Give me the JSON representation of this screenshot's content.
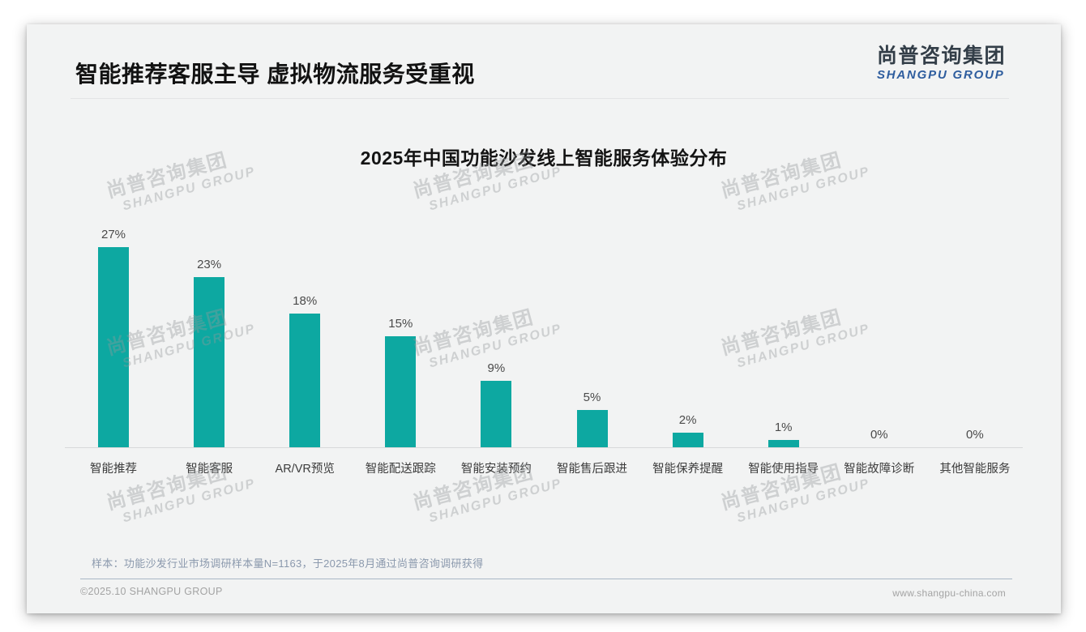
{
  "page": {
    "background_color": "#ffffff",
    "card_background_color": "#f2f3f3"
  },
  "header": {
    "title": "智能推荐客服主导 虚拟物流服务受重视"
  },
  "logo": {
    "cn": "尚普咨询集团",
    "en": "SHANGPU GROUP",
    "cn_color": "#333e48",
    "en_color": "#2e5d9e"
  },
  "watermark": {
    "line1": "尚普咨询集团",
    "line2": "SHANGPU GROUP"
  },
  "chart_data": {
    "type": "bar",
    "title": "2025年中国功能沙发线上智能服务体验分布",
    "categories": [
      "智能推荐",
      "智能客服",
      "AR/VR预览",
      "智能配送跟踪",
      "智能安装预约",
      "智能售后跟进",
      "智能保养提醒",
      "智能使用指导",
      "智能故障诊断",
      "其他智能服务"
    ],
    "values": [
      27,
      23,
      18,
      15,
      9,
      5,
      2,
      1,
      0,
      0
    ],
    "value_labels": [
      "27%",
      "23%",
      "18%",
      "15%",
      "9%",
      "5%",
      "2%",
      "1%",
      "0%",
      "0%"
    ],
    "unit": "%",
    "bar_color": "#0da8a1",
    "xlabel": "",
    "ylabel": "",
    "ylim": [
      0,
      30
    ],
    "grid": false,
    "legend": "none",
    "value_labels_position": "above-bars"
  },
  "footnote": {
    "text": "样本：功能沙发行业市场调研样本量N=1163，于2025年8月通过尚普咨询调研获得"
  },
  "footer": {
    "copyright": "©2025.10 SHANGPU GROUP",
    "website": "www.shangpu-china.com"
  }
}
